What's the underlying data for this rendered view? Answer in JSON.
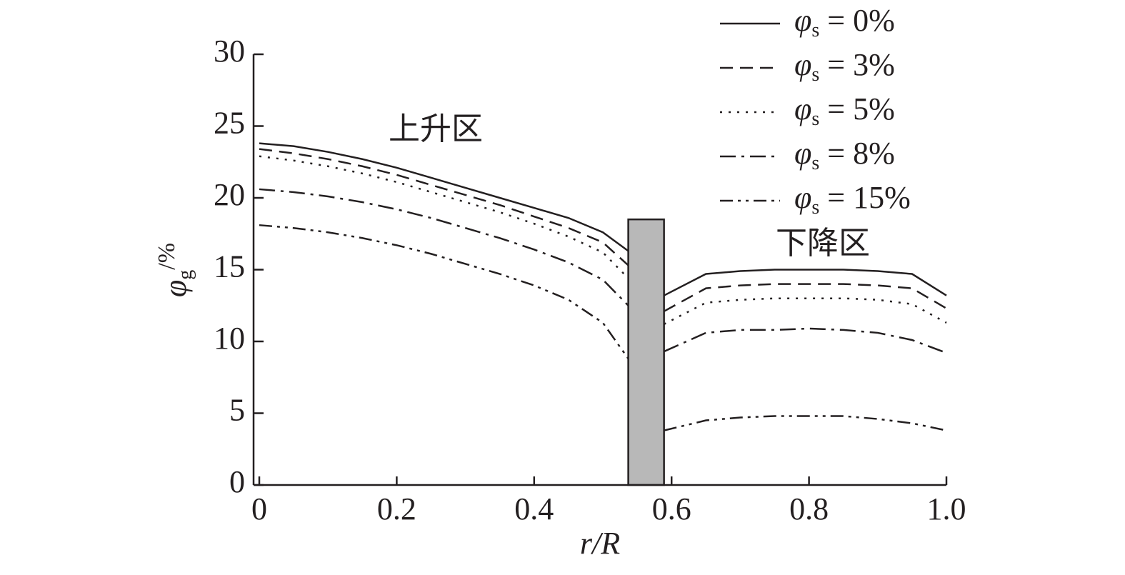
{
  "chart_data": {
    "type": "line",
    "x_label": "r/R",
    "y_label": "φg/%",
    "annotations": [
      "上升区",
      "下降区"
    ],
    "x": [
      0,
      0.05,
      0.1,
      0.15,
      0.2,
      0.25,
      0.3,
      0.35,
      0.4,
      0.45,
      0.5,
      0.537,
      0.563,
      0.589,
      0.65,
      0.7,
      0.75,
      0.8,
      0.85,
      0.9,
      0.95,
      1.0
    ],
    "series": [
      {
        "name": "φs = 0%",
        "color": "#231f20",
        "linestyle": "solid",
        "values": [
          23.8,
          23.6,
          23.2,
          22.7,
          22.1,
          21.4,
          20.7,
          20.0,
          19.3,
          18.6,
          17.6,
          16.3,
          null,
          13.2,
          14.7,
          14.9,
          15.0,
          15.0,
          15.0,
          14.9,
          14.7,
          13.2
        ]
      },
      {
        "name": "φs = 3%",
        "color": "#231f20",
        "linestyle": "dashed",
        "values": [
          23.4,
          23.1,
          22.7,
          22.2,
          21.6,
          20.9,
          20.2,
          19.5,
          18.7,
          17.9,
          16.9,
          15.3,
          null,
          12.1,
          13.7,
          13.9,
          14.0,
          14.0,
          14.0,
          13.9,
          13.7,
          12.3
        ]
      },
      {
        "name": "φs = 5%",
        "color": "#231f20",
        "linestyle": "dotted",
        "values": [
          22.9,
          22.6,
          22.2,
          21.7,
          21.1,
          20.4,
          19.7,
          19.0,
          18.2,
          17.3,
          16.2,
          14.4,
          null,
          11.2,
          12.7,
          12.9,
          13.0,
          13.0,
          13.0,
          12.9,
          12.6,
          11.3
        ]
      },
      {
        "name": "φs = 8%",
        "color": "#231f20",
        "linestyle": "dashdot",
        "values": [
          20.6,
          20.4,
          20.1,
          19.7,
          19.2,
          18.6,
          17.9,
          17.2,
          16.4,
          15.5,
          14.3,
          12.5,
          null,
          9.3,
          10.6,
          10.8,
          10.8,
          10.9,
          10.8,
          10.6,
          10.1,
          9.2
        ]
      },
      {
        "name": "φs = 15%",
        "color": "#231f20",
        "linestyle": "dashdotdot",
        "values": [
          18.1,
          17.9,
          17.6,
          17.2,
          16.7,
          16.1,
          15.4,
          14.7,
          13.9,
          12.9,
          11.3,
          8.8,
          null,
          3.8,
          4.5,
          4.7,
          4.8,
          4.8,
          4.8,
          4.6,
          4.3,
          3.8
        ]
      }
    ],
    "region": {
      "x0": 0.537,
      "x1": 0.589,
      "top": 18.5,
      "color": "#b8b8b8"
    },
    "xlim": [
      0,
      1.0
    ],
    "xticks": [
      0,
      0.2,
      0.4,
      0.6,
      0.8,
      {
        "value": 1.0,
        "label": "1.0"
      }
    ],
    "ylim": [
      0,
      30
    ],
    "yticks": [
      0,
      5,
      10,
      15,
      20,
      25,
      30
    ]
  }
}
